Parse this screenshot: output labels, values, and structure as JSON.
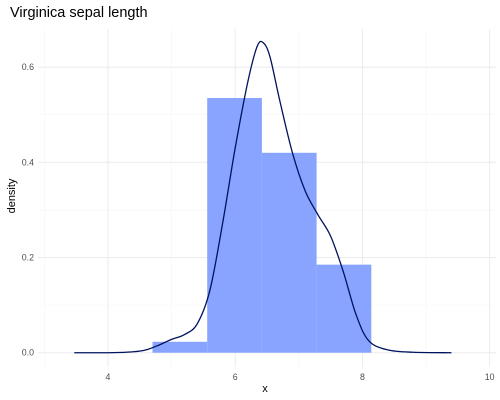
{
  "chart_data": {
    "type": "histogram+density",
    "title": "Virginica sepal length",
    "xlabel": "x",
    "ylabel": "density",
    "xlim": [
      2.9,
      10.1
    ],
    "ylim": [
      -0.03,
      0.68
    ],
    "x_ticks": [
      4,
      6,
      8,
      10
    ],
    "y_ticks": [
      0.0,
      0.2,
      0.4,
      0.6
    ],
    "x_tick_labels": [
      "4",
      "6",
      "8",
      "10"
    ],
    "y_tick_labels": [
      "0.0",
      "0.2",
      "0.4",
      "0.6"
    ],
    "grid": true,
    "bins": [
      {
        "x0": 4.7,
        "x1": 5.56,
        "density": 0.023
      },
      {
        "x0": 5.56,
        "x1": 6.42,
        "density": 0.535
      },
      {
        "x0": 6.42,
        "x1": 7.28,
        "density": 0.42
      },
      {
        "x0": 7.28,
        "x1": 8.14,
        "density": 0.185
      }
    ],
    "density_curve": [
      {
        "x": 3.47,
        "y": 0.0
      },
      {
        "x": 4.0,
        "y": 0.0
      },
      {
        "x": 4.4,
        "y": 0.002
      },
      {
        "x": 4.6,
        "y": 0.006
      },
      {
        "x": 4.8,
        "y": 0.016
      },
      {
        "x": 5.0,
        "y": 0.028
      },
      {
        "x": 5.2,
        "y": 0.038
      },
      {
        "x": 5.4,
        "y": 0.06
      },
      {
        "x": 5.6,
        "y": 0.13
      },
      {
        "x": 5.8,
        "y": 0.27
      },
      {
        "x": 6.0,
        "y": 0.43
      },
      {
        "x": 6.2,
        "y": 0.57
      },
      {
        "x": 6.35,
        "y": 0.645
      },
      {
        "x": 6.45,
        "y": 0.65
      },
      {
        "x": 6.55,
        "y": 0.62
      },
      {
        "x": 6.7,
        "y": 0.53
      },
      {
        "x": 6.9,
        "y": 0.42
      },
      {
        "x": 7.1,
        "y": 0.34
      },
      {
        "x": 7.3,
        "y": 0.29
      },
      {
        "x": 7.5,
        "y": 0.245
      },
      {
        "x": 7.7,
        "y": 0.17
      },
      {
        "x": 7.9,
        "y": 0.08
      },
      {
        "x": 8.1,
        "y": 0.025
      },
      {
        "x": 8.4,
        "y": 0.006
      },
      {
        "x": 8.8,
        "y": 0.001
      },
      {
        "x": 9.4,
        "y": 0.0
      }
    ],
    "colors": {
      "bar_fill": "#88a4ff",
      "curve": "#00135e",
      "grid_major": "#ebebeb",
      "grid_minor": "#f5f5f5",
      "tick_label": "#4d4d4d"
    }
  }
}
